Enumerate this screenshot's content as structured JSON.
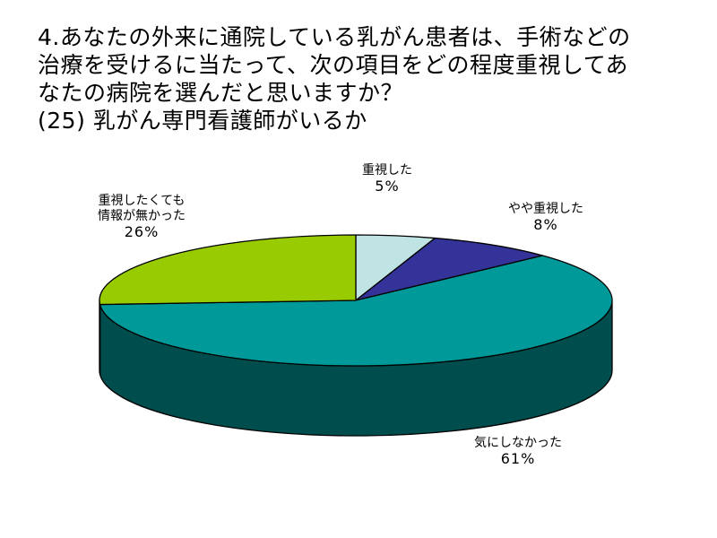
{
  "title_lines": [
    "4.あなたの外来に通院している乳がん患者は、手術などの",
    "治療を受けるに当たって、次の項目をどの程度重視してあ",
    "なたの病院を選んだと思いますか？",
    "(25) 乳がん専門看護師がいるか"
  ],
  "chart_data": {
    "type": "pie",
    "title": "4.あなたの外来に通院している乳がん患者は、手術などの治療を受けるに当たって、次の項目をどの程度重視してあなたの病院を選んだと思いますか？ (25) 乳がん専門看護師がいるか",
    "slices": [
      {
        "category_lines": [
          "重視した"
        ],
        "value": 5,
        "value_label": "5%",
        "color": "#c0e4e4",
        "side_color": "#6fa3a3"
      },
      {
        "category_lines": [
          "やや重視した"
        ],
        "value": 8,
        "value_label": "8%",
        "color": "#333399",
        "side_color": "#1a1a4d"
      },
      {
        "category_lines": [
          "気にしなかった"
        ],
        "value": 61,
        "value_label": "61%",
        "color": "#009999",
        "side_color": "#004d4d"
      },
      {
        "category_lines": [
          "重視したくても",
          "情報が無かった"
        ],
        "value": 26,
        "value_label": "26%",
        "color": "#99cc00",
        "side_color": "#4d6600"
      }
    ],
    "start_angle_deg": -90,
    "direction": "clockwise",
    "three_d": true,
    "legend": "none",
    "outline_color": "#000000"
  }
}
